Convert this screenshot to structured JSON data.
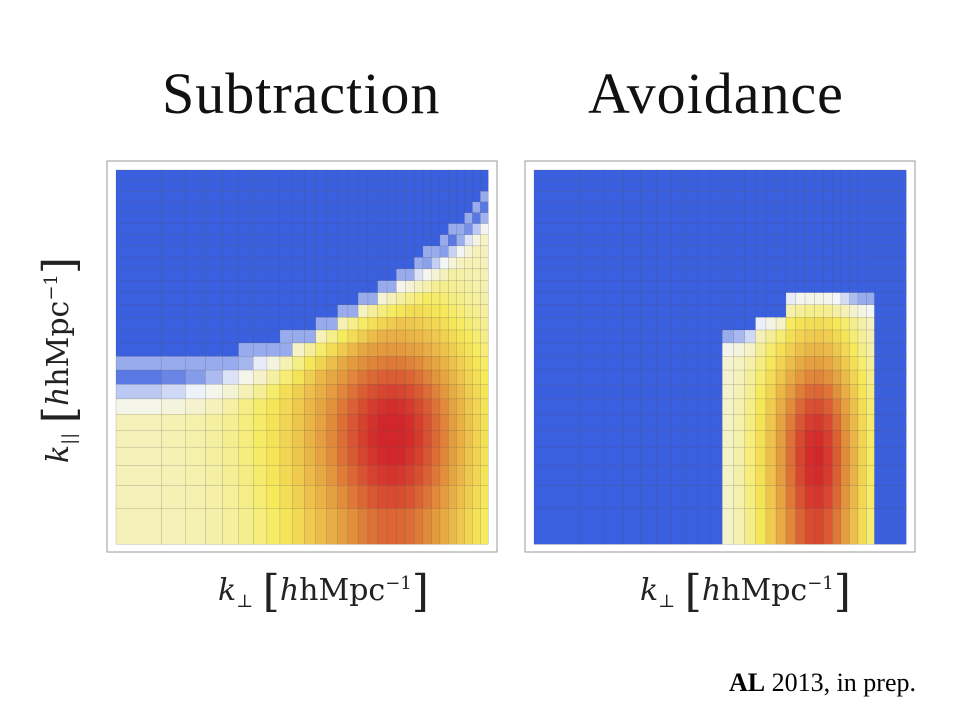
{
  "titles": {
    "left": "Subtraction",
    "right": "Avoidance"
  },
  "axes": {
    "x_label": {
      "var": "k",
      "sub": "⊥",
      "unit": "hMpc",
      "exp": "−1"
    },
    "y_label": {
      "var": "k",
      "sub": "||",
      "unit": "hMpc",
      "exp": "−1"
    }
  },
  "footer": {
    "bold": "AL",
    "rest": " 2013, in prep."
  },
  "colors": {
    "blue": "#3a5fdf",
    "white": "#f4f6fa",
    "yellow": "#f6ea5a",
    "orange": "#e3953c",
    "red": "#d2262a",
    "grid": "#555555",
    "frame": "#999999"
  },
  "chart_data": [
    {
      "type": "heatmap",
      "title": "Subtraction",
      "xlabel": "k⊥ [hMpc−1]",
      "ylabel": "k|| [hMpc−1]",
      "colormap": [
        "blue",
        "white",
        "yellow",
        "orange",
        "red"
      ],
      "grid": true,
      "description_of_field": "sensitivity high below a rising wedge boundary, peak at mid k⊥ low k||"
    },
    {
      "type": "heatmap",
      "title": "Avoidance",
      "xlabel": "k⊥ [hMpc−1]",
      "ylabel": "",
      "colormap": [
        "blue",
        "white",
        "yellow",
        "orange",
        "red"
      ],
      "grid": true,
      "description_of_field": "sensitivity confined to a rectangular window at mid k⊥, low k||"
    }
  ]
}
